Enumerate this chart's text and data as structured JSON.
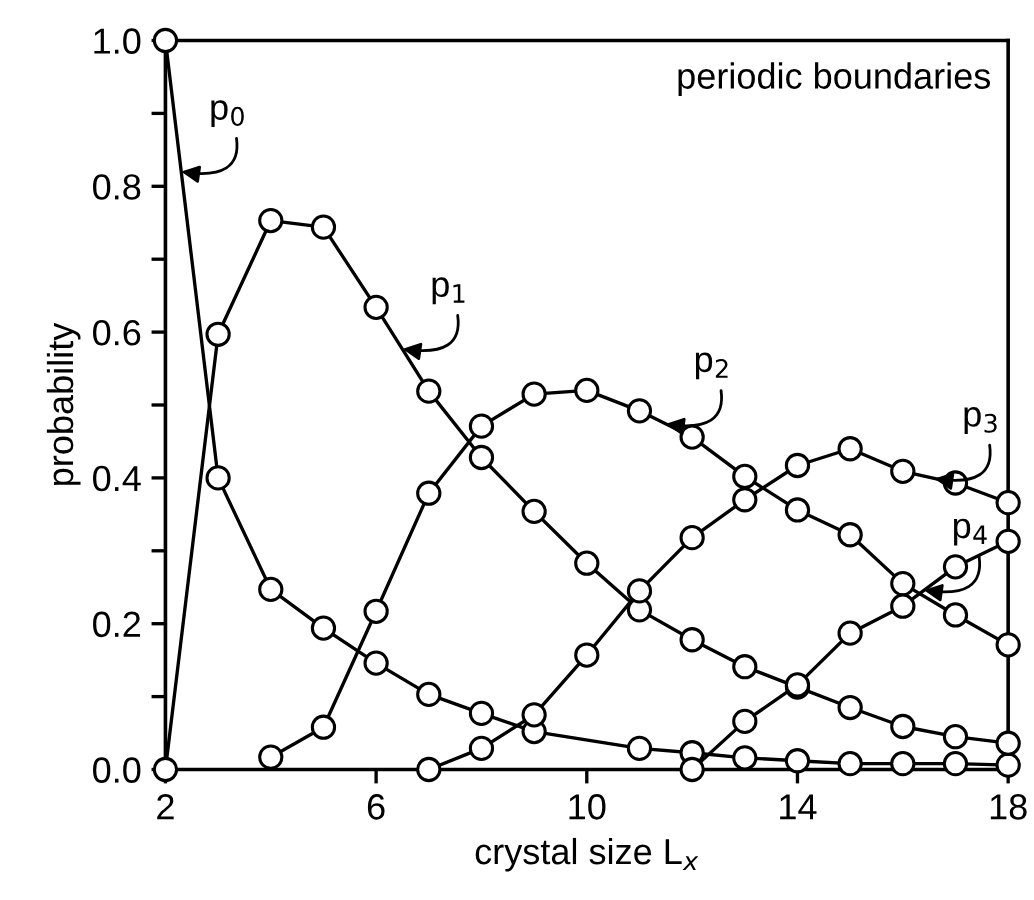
{
  "chart_data": {
    "type": "line",
    "xlabel": "crystal size L$_{x}$",
    "ylabel": "probability",
    "xlim": [
      2,
      18
    ],
    "xticks": [
      2,
      6,
      10,
      14,
      18
    ],
    "ylim": [
      0,
      1.0
    ],
    "yticks": [
      {
        "value": 0,
        "label": "0.0"
      },
      {
        "value": 0.1,
        "label": null
      },
      {
        "value": 0.2,
        "label": "0.2"
      },
      {
        "value": 0.3,
        "label": null
      },
      {
        "value": 0.4,
        "label": "0.4"
      },
      {
        "value": 0.5,
        "label": null
      },
      {
        "value": 0.6,
        "label": "0.6"
      },
      {
        "value": 0.7,
        "label": null
      },
      {
        "value": 0.8,
        "label": "0.8"
      },
      {
        "value": 0.9,
        "label": null
      },
      {
        "value": 1.0,
        "label": "1.0"
      }
    ],
    "marker": "circle",
    "line_style": "solid",
    "grid": false,
    "legend": false,
    "series": [
      {
        "color": "#000000",
        "x": [
          2,
          3,
          4,
          5,
          6,
          7,
          8,
          9,
          11,
          12,
          13,
          14,
          15,
          16,
          17,
          18
        ],
        "values": [
          1.0,
          0.4,
          0.247,
          0.194,
          0.146,
          0.103,
          0.077,
          0.052,
          0.029,
          0.023,
          0.016,
          0.012,
          0.008,
          0.008,
          0.008,
          0.006
        ]
      },
      {
        "color": "#000000",
        "x": [
          2,
          3,
          4,
          5,
          6,
          7,
          8,
          9,
          10,
          11,
          12,
          13,
          14,
          15,
          16,
          17,
          18
        ],
        "values": [
          0.0,
          0.597,
          0.753,
          0.744,
          0.634,
          0.519,
          0.428,
          0.354,
          0.283,
          0.219,
          0.178,
          0.141,
          0.113,
          0.085,
          0.059,
          0.045,
          0.036
        ]
      },
      {
        "color": "#000000",
        "x": [
          4,
          5,
          6,
          7,
          8,
          9,
          10,
          11,
          12,
          13,
          14,
          15,
          16,
          17,
          18
        ],
        "values": [
          0.017,
          0.058,
          0.217,
          0.379,
          0.471,
          0.515,
          0.52,
          0.492,
          0.456,
          0.402,
          0.356,
          0.322,
          0.255,
          0.212,
          0.171
        ]
      },
      {
        "color": "#000000",
        "x": [
          7,
          8,
          9,
          10,
          11,
          12,
          13,
          14,
          15,
          16,
          17,
          18
        ],
        "values": [
          0.0,
          0.029,
          0.075,
          0.157,
          0.245,
          0.318,
          0.37,
          0.417,
          0.44,
          0.409,
          0.393,
          0.366
        ]
      },
      {
        "color": "#000000",
        "x": [
          12,
          13,
          14,
          15,
          16,
          17,
          18
        ],
        "values": [
          0.0,
          0.066,
          0.116,
          0.187,
          0.224,
          0.278,
          0.313
        ]
      }
    ],
    "annotations": [
      {
        "text": "p$_{0}$",
        "x": 2.3,
        "y": 0.82
      },
      {
        "text": "p$_{1}$",
        "x": 6.5,
        "y": 0.577
      },
      {
        "text": "p$_{2}$",
        "x": 11.5,
        "y": 0.474
      },
      {
        "text": "p$_{3}$",
        "x": 16.6,
        "y": 0.399
      },
      {
        "text": "p$_{4}$",
        "x": 16.4,
        "y": 0.246
      },
      "periodic boundaries"
    ]
  }
}
